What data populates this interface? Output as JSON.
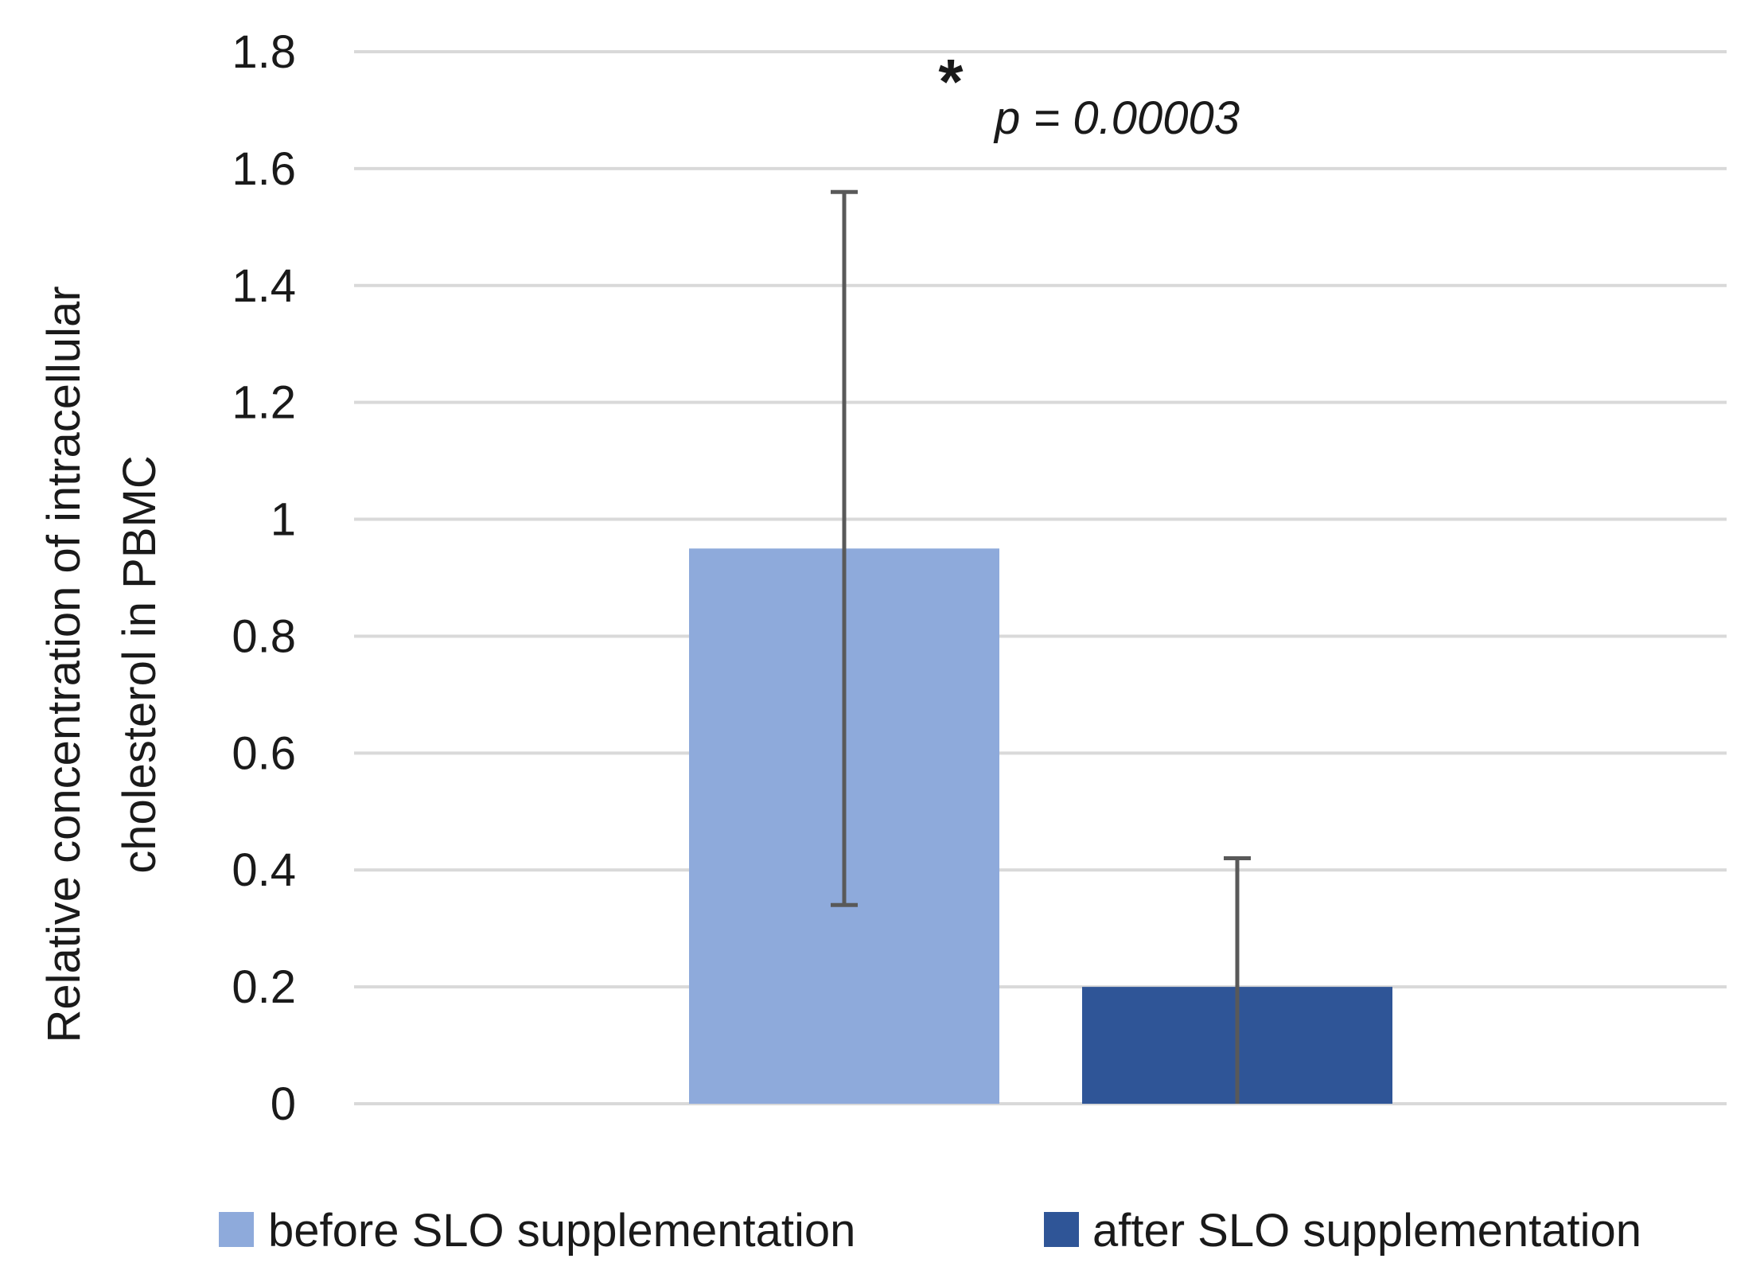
{
  "chart_data": {
    "type": "bar",
    "categories": [
      ""
    ],
    "series": [
      {
        "name": "before SLO supplementation",
        "values": [
          0.95
        ],
        "error": [
          0.61
        ],
        "color": "#8eaadb"
      },
      {
        "name": "after SLO supplementation",
        "values": [
          0.2
        ],
        "error": [
          0.22
        ],
        "color": "#2f5597"
      }
    ],
    "title": "",
    "xlabel": "",
    "ylabel": [
      "Relative concentration of intracellular",
      "cholesterol in PBMC"
    ],
    "ylim": [
      0,
      1.8
    ],
    "yticks": [
      0,
      0.2,
      0.4,
      0.6,
      0.8,
      1,
      1.2,
      1.4,
      1.6,
      1.8
    ],
    "ytick_labels": [
      "0",
      "0.2",
      "0.4",
      "0.6",
      "0.8",
      "1",
      "1.2",
      "1.4",
      "1.6",
      "1.8"
    ],
    "grid": true,
    "legend_position": "bottom",
    "annotations": {
      "star": "*",
      "p_value": "p = 0.00003"
    }
  },
  "colors": {
    "grid": "#d9d9d9",
    "error_bar": "#595959",
    "text": "#1a1a1a"
  }
}
